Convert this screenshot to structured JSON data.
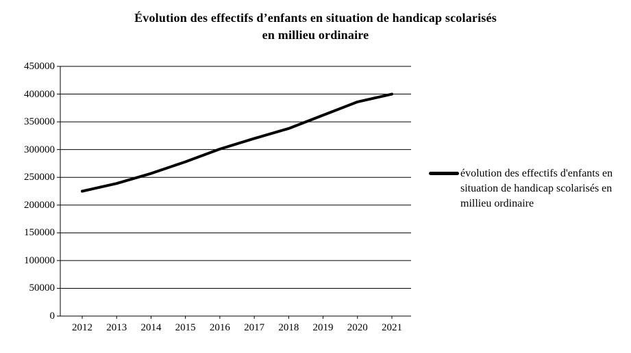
{
  "title": {
    "line1": "Évolution des effectifs d’enfants en situation de handicap scolarisés",
    "line2": "en millieu ordinaire"
  },
  "legend": {
    "label": "évolution des effectifs d'enfants en situation de handicap scolarisés en millieu ordinaire"
  },
  "chart_data": {
    "type": "line",
    "title": "Évolution des effectifs d’enfants en situation de handicap scolarisés en millieu ordinaire",
    "x": [
      2012,
      2013,
      2014,
      2015,
      2016,
      2017,
      2018,
      2019,
      2020,
      2021
    ],
    "series": [
      {
        "name": "évolution des effectifs d'enfants en situation de handicap scolarisés en millieu ordinaire",
        "values": [
          225000,
          239000,
          257000,
          278000,
          301000,
          320000,
          338000,
          362000,
          386000,
          400000
        ]
      }
    ],
    "xlabel": "",
    "ylabel": "",
    "ylim": [
      0,
      450000
    ],
    "ytick_step": 50000,
    "grid": true,
    "legend_position": "right",
    "line_color": "#000000",
    "line_width": 4
  }
}
